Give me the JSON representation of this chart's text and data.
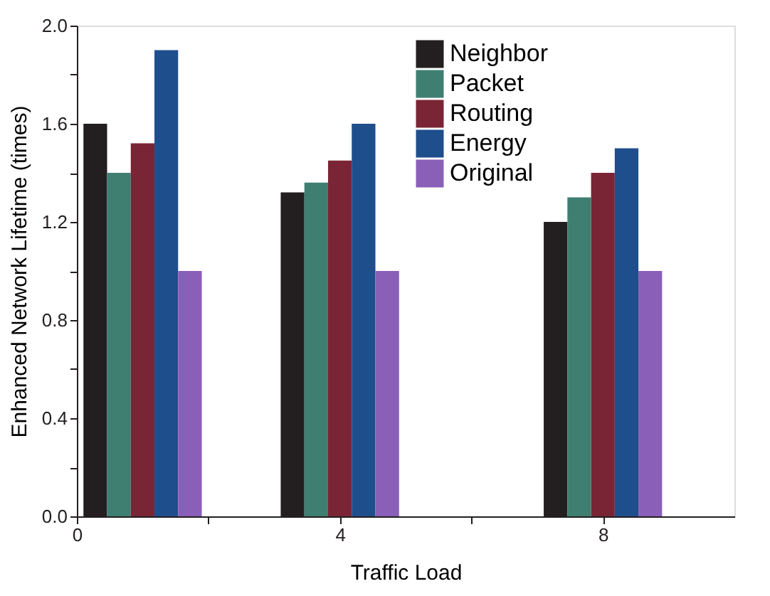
{
  "chart_data": {
    "type": "bar",
    "xlabel": "Traffic Load",
    "ylabel": "Enhanced Network Lifetime (times)",
    "x": [
      1,
      4,
      8
    ],
    "series": [
      {
        "name": "Neighbor",
        "color": "#231f20",
        "values": [
          1.6,
          1.32,
          1.2
        ]
      },
      {
        "name": "Packet",
        "color": "#3f7f72",
        "values": [
          1.4,
          1.36,
          1.3
        ]
      },
      {
        "name": "Routing",
        "color": "#7a2535",
        "values": [
          1.52,
          1.45,
          1.4
        ]
      },
      {
        "name": "Energy",
        "color": "#1f4e8c",
        "values": [
          1.9,
          1.6,
          1.5
        ]
      },
      {
        "name": "Original",
        "color": "#8a5fb8",
        "values": [
          1.0,
          1.0,
          1.0
        ]
      }
    ],
    "xlim": [
      0,
      10
    ],
    "xticks": [
      0,
      {
        "value": 2,
        "label": null
      },
      4,
      {
        "value": 6,
        "label": null
      },
      8
    ],
    "ylim": [
      0,
      2.0
    ],
    "yticks": [
      {
        "value": 0,
        "label": "0.0"
      },
      {
        "value": 0.2,
        "label": null
      },
      0.4,
      {
        "value": 0.6,
        "label": null
      },
      0.8,
      {
        "value": 1.0,
        "label": null
      },
      1.2,
      {
        "value": 1.4,
        "label": null
      },
      1.6,
      {
        "value": 1.8,
        "label": null
      },
      {
        "value": 2.0,
        "label": "2.0"
      }
    ],
    "legend": "top right",
    "grid": false
  }
}
